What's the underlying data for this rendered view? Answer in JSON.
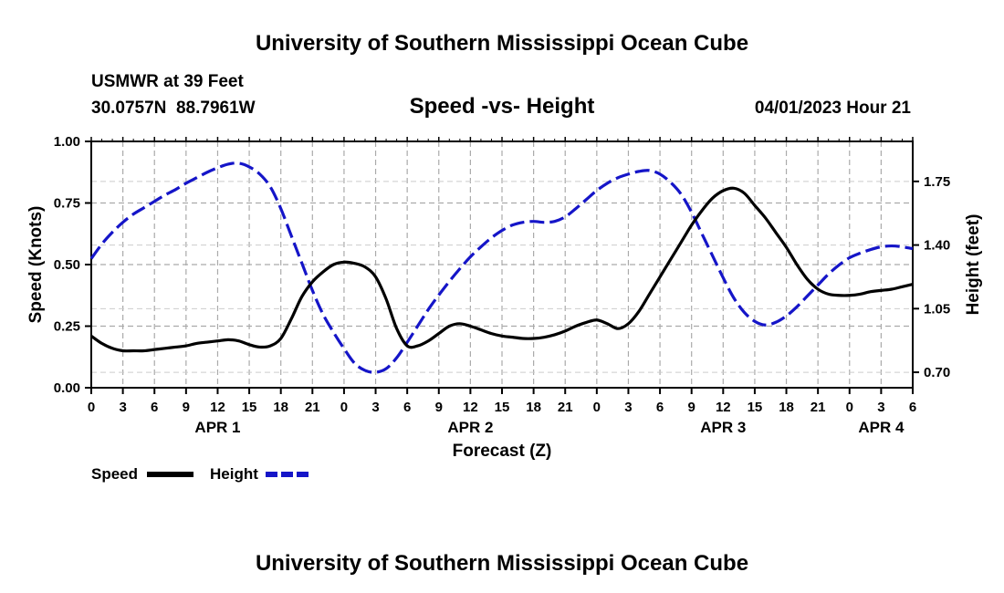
{
  "header": {
    "title": "University of Southern Mississippi Ocean Cube",
    "station": "USMWR at 39 Feet",
    "coords": "30.0757N  88.7961W",
    "chart_title": "Speed -vs- Height",
    "datetime": "04/01/2023 Hour 21"
  },
  "footer": {
    "title": "University of Southern Mississippi Ocean Cube"
  },
  "colors": {
    "speed": "#000000",
    "height": "#1515c8",
    "grid": "#aaaaaa"
  },
  "chart_data": {
    "type": "line",
    "title": "Speed -vs- Height",
    "xlabel": "Forecast (Z)",
    "ylabel": "Speed (Knots)",
    "y2label": "Height (feet)",
    "x_unit": "hours since APR 1 00Z",
    "xlim": [
      0,
      78
    ],
    "ylim": [
      0,
      1.0
    ],
    "y2lim": [
      0.615,
      1.97
    ],
    "x_ticks": [
      0,
      3,
      6,
      9,
      12,
      15,
      18,
      21,
      24,
      27,
      30,
      33,
      36,
      39,
      42,
      45,
      48,
      51,
      54,
      57,
      60,
      63,
      66,
      69,
      72,
      75,
      78
    ],
    "x_tick_labels": [
      "0",
      "3",
      "6",
      "9",
      "12",
      "15",
      "18",
      "21",
      "0",
      "3",
      "6",
      "9",
      "12",
      "15",
      "18",
      "21",
      "0",
      "3",
      "6",
      "9",
      "12",
      "15",
      "18",
      "21",
      "0",
      "3",
      "6"
    ],
    "y_ticks": [
      0,
      0.25,
      0.5,
      0.75,
      1.0
    ],
    "y_tick_labels": [
      "0.00",
      "0.25",
      "0.50",
      "0.75",
      "1.00"
    ],
    "y2_ticks": [
      0.7,
      1.05,
      1.4,
      1.75
    ],
    "y2_tick_labels": [
      "0.70",
      "1.05",
      "1.40",
      "1.75"
    ],
    "day_labels": [
      {
        "label": "APR 1",
        "x": 12
      },
      {
        "label": "APR 2",
        "x": 36
      },
      {
        "label": "APR 3",
        "x": 60
      },
      {
        "label": "APR 4",
        "x": 75
      }
    ],
    "grid": true,
    "legend": {
      "position": "bottom-left",
      "items": [
        {
          "label": "Speed",
          "series": "speed"
        },
        {
          "label": "Height",
          "series": "height"
        }
      ]
    },
    "series": [
      {
        "name": "Speed",
        "key": "speed",
        "axis": "left",
        "style": "solid",
        "x": [
          0,
          1,
          2,
          3,
          4,
          5,
          6,
          7,
          8,
          9,
          10,
          11,
          12,
          13,
          14,
          15,
          16,
          17,
          18,
          19,
          20,
          21,
          22,
          23,
          24,
          25,
          26,
          27,
          28,
          29,
          30,
          31,
          32,
          33,
          34,
          35,
          36,
          37,
          38,
          39,
          40,
          41,
          42,
          43,
          44,
          45,
          46,
          47,
          48,
          49,
          50,
          51,
          52,
          53,
          54,
          55,
          56,
          57,
          58,
          59,
          60,
          61,
          62,
          63,
          64,
          65,
          66,
          67,
          68,
          69,
          70,
          71,
          72,
          73,
          74,
          75,
          76,
          77,
          78
        ],
        "values": [
          0.21,
          0.18,
          0.16,
          0.15,
          0.15,
          0.15,
          0.155,
          0.16,
          0.165,
          0.17,
          0.18,
          0.185,
          0.19,
          0.195,
          0.19,
          0.175,
          0.165,
          0.17,
          0.2,
          0.28,
          0.37,
          0.43,
          0.47,
          0.5,
          0.51,
          0.505,
          0.49,
          0.45,
          0.36,
          0.24,
          0.17,
          0.17,
          0.19,
          0.22,
          0.25,
          0.26,
          0.25,
          0.235,
          0.22,
          0.21,
          0.205,
          0.2,
          0.2,
          0.205,
          0.215,
          0.23,
          0.25,
          0.265,
          0.275,
          0.26,
          0.24,
          0.26,
          0.31,
          0.38,
          0.45,
          0.52,
          0.59,
          0.66,
          0.72,
          0.77,
          0.8,
          0.81,
          0.79,
          0.74,
          0.69,
          0.63,
          0.57,
          0.5,
          0.44,
          0.4,
          0.38,
          0.375,
          0.375,
          0.38,
          0.39,
          0.395,
          0.4,
          0.41,
          0.42
        ]
      },
      {
        "name": "Height",
        "key": "height",
        "axis": "right",
        "style": "dashed",
        "x": [
          0,
          1,
          2,
          3,
          4,
          5,
          6,
          7,
          8,
          9,
          10,
          11,
          12,
          13,
          14,
          15,
          16,
          17,
          18,
          19,
          20,
          21,
          22,
          23,
          24,
          25,
          26,
          27,
          28,
          29,
          30,
          31,
          32,
          33,
          34,
          35,
          36,
          37,
          38,
          39,
          40,
          41,
          42,
          43,
          44,
          45,
          46,
          47,
          48,
          49,
          50,
          51,
          52,
          53,
          54,
          55,
          56,
          57,
          58,
          59,
          60,
          61,
          62,
          63,
          64,
          65,
          66,
          67,
          68,
          69,
          70,
          71,
          72,
          73,
          74,
          75,
          76,
          77,
          78
        ],
        "values": [
          1.325,
          1.405,
          1.47,
          1.525,
          1.57,
          1.605,
          1.64,
          1.675,
          1.705,
          1.74,
          1.77,
          1.8,
          1.825,
          1.845,
          1.85,
          1.83,
          1.79,
          1.72,
          1.6,
          1.45,
          1.3,
          1.15,
          1.02,
          0.92,
          0.83,
          0.75,
          0.71,
          0.7,
          0.72,
          0.78,
          0.865,
          0.955,
          1.045,
          1.125,
          1.2,
          1.27,
          1.335,
          1.39,
          1.44,
          1.48,
          1.51,
          1.525,
          1.53,
          1.525,
          1.53,
          1.555,
          1.6,
          1.65,
          1.7,
          1.74,
          1.77,
          1.79,
          1.805,
          1.81,
          1.79,
          1.745,
          1.68,
          1.58,
          1.46,
          1.34,
          1.22,
          1.11,
          1.03,
          0.98,
          0.96,
          0.975,
          1.01,
          1.06,
          1.12,
          1.18,
          1.24,
          1.29,
          1.33,
          1.355,
          1.375,
          1.39,
          1.395,
          1.39,
          1.38
        ]
      }
    ]
  }
}
